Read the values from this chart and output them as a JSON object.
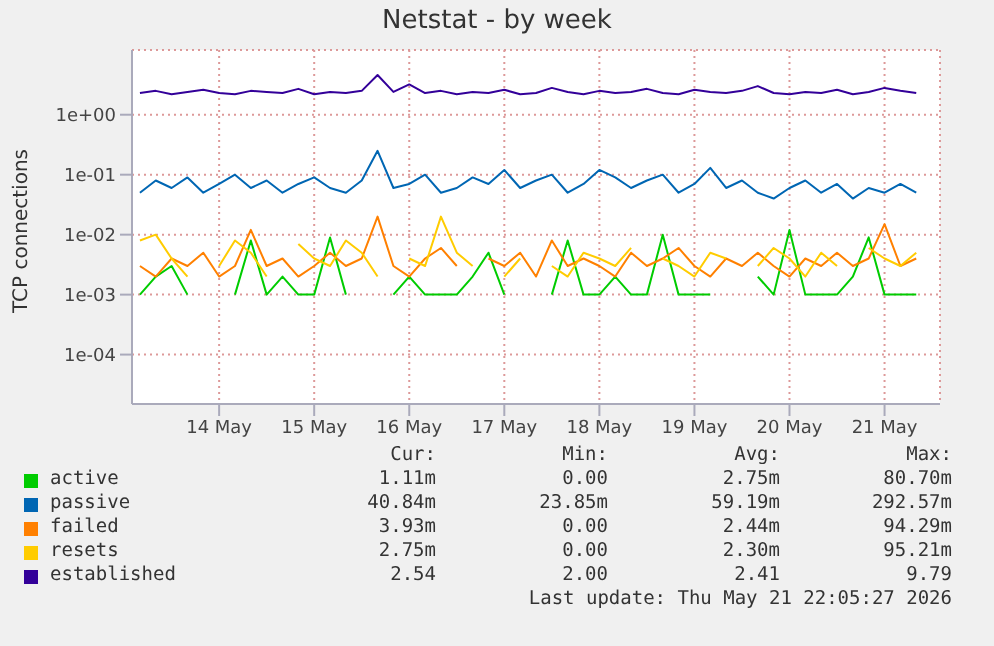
{
  "chart_data": {
    "type": "line",
    "title": "Netstat - by week",
    "ylabel": "TCP connections",
    "log": "y",
    "grid": true,
    "legend": "bottom",
    "marker": "none",
    "line_style": "solid",
    "xlim": [
      "2026-05-13T14:00",
      "2026-05-22T02:00"
    ],
    "xticks": [
      {
        "value": "2026-05-14T12:00",
        "label": "14 May"
      },
      {
        "value": "2026-05-15T12:00",
        "label": "15 May"
      },
      {
        "value": "2026-05-16T12:00",
        "label": "16 May"
      },
      {
        "value": "2026-05-17T12:00",
        "label": "17 May"
      },
      {
        "value": "2026-05-18T12:00",
        "label": "18 May"
      },
      {
        "value": "2026-05-19T12:00",
        "label": "19 May"
      },
      {
        "value": "2026-05-20T12:00",
        "label": "20 May"
      },
      {
        "value": "2026-05-21T12:00",
        "label": "21 May"
      }
    ],
    "ylim": [
      1.5e-05,
      12
    ],
    "yticks": [
      {
        "value": 0.0001,
        "label": "1e-04"
      },
      {
        "value": 0.001,
        "label": "1e-03"
      },
      {
        "value": 0.01,
        "label": "1e-02"
      },
      {
        "value": 0.1,
        "label": "1e-01"
      },
      {
        "value": 1,
        "label": "1e+00"
      }
    ],
    "x": [
      "2026-05-13T16:00",
      "2026-05-13T20:00",
      "2026-05-14T00:00",
      "2026-05-14T04:00",
      "2026-05-14T08:00",
      "2026-05-14T12:00",
      "2026-05-14T16:00",
      "2026-05-14T20:00",
      "2026-05-15T00:00",
      "2026-05-15T04:00",
      "2026-05-15T08:00",
      "2026-05-15T12:00",
      "2026-05-15T16:00",
      "2026-05-15T20:00",
      "2026-05-16T00:00",
      "2026-05-16T04:00",
      "2026-05-16T08:00",
      "2026-05-16T12:00",
      "2026-05-16T16:00",
      "2026-05-16T20:00",
      "2026-05-17T00:00",
      "2026-05-17T04:00",
      "2026-05-17T08:00",
      "2026-05-17T12:00",
      "2026-05-17T16:00",
      "2026-05-17T20:00",
      "2026-05-18T00:00",
      "2026-05-18T04:00",
      "2026-05-18T08:00",
      "2026-05-18T12:00",
      "2026-05-18T16:00",
      "2026-05-18T20:00",
      "2026-05-19T00:00",
      "2026-05-19T04:00",
      "2026-05-19T08:00",
      "2026-05-19T12:00",
      "2026-05-19T16:00",
      "2026-05-19T20:00",
      "2026-05-20T00:00",
      "2026-05-20T04:00",
      "2026-05-20T08:00",
      "2026-05-20T12:00",
      "2026-05-20T16:00",
      "2026-05-20T20:00",
      "2026-05-21T00:00",
      "2026-05-21T04:00",
      "2026-05-21T08:00",
      "2026-05-21T12:00",
      "2026-05-21T16:00",
      "2026-05-21T20:00"
    ],
    "series": [
      {
        "name": "active",
        "color": "#00cc00",
        "values": [
          0.001,
          0.002,
          0.003,
          0.001,
          null,
          null,
          0.001,
          0.008,
          0.001,
          0.002,
          0.001,
          0.001,
          0.009,
          0.001,
          null,
          null,
          0.001,
          0.002,
          0.001,
          0.001,
          0.001,
          0.002,
          0.005,
          0.001,
          null,
          null,
          0.001,
          0.008,
          0.001,
          0.001,
          0.002,
          0.001,
          0.001,
          0.01,
          0.001,
          0.001,
          0.001,
          null,
          null,
          0.002,
          0.001,
          0.012,
          0.001,
          0.001,
          0.001,
          0.002,
          0.009,
          0.001,
          0.001,
          0.001
        ]
      },
      {
        "name": "passive",
        "color": "#0066b3",
        "values": [
          0.05,
          0.08,
          0.06,
          0.09,
          0.05,
          0.07,
          0.1,
          0.06,
          0.08,
          0.05,
          0.07,
          0.09,
          0.06,
          0.05,
          0.08,
          0.25,
          0.06,
          0.07,
          0.1,
          0.05,
          0.06,
          0.09,
          0.07,
          0.12,
          0.06,
          0.08,
          0.1,
          0.05,
          0.07,
          0.12,
          0.09,
          0.06,
          0.08,
          0.1,
          0.05,
          0.07,
          0.13,
          0.06,
          0.08,
          0.05,
          0.04,
          0.06,
          0.08,
          0.05,
          0.07,
          0.04,
          0.06,
          0.05,
          0.07,
          0.05
        ]
      },
      {
        "name": "failed",
        "color": "#ff8000",
        "values": [
          0.003,
          0.002,
          0.004,
          0.003,
          0.005,
          0.002,
          0.003,
          0.012,
          0.003,
          0.004,
          0.002,
          0.003,
          0.005,
          0.003,
          0.004,
          0.02,
          0.003,
          0.002,
          0.004,
          0.006,
          0.003,
          null,
          0.004,
          0.003,
          0.005,
          0.002,
          0.008,
          0.003,
          0.004,
          0.003,
          0.002,
          0.005,
          0.003,
          0.004,
          0.006,
          0.003,
          0.002,
          0.004,
          0.003,
          0.005,
          0.003,
          0.002,
          0.004,
          0.003,
          0.005,
          0.003,
          0.004,
          0.015,
          0.003,
          0.004
        ]
      },
      {
        "name": "resets",
        "color": "#ffcc00",
        "values": [
          0.008,
          0.01,
          0.004,
          0.002,
          null,
          0.003,
          0.008,
          0.005,
          0.002,
          null,
          0.007,
          0.004,
          0.003,
          0.008,
          0.005,
          0.002,
          null,
          0.004,
          0.003,
          0.02,
          0.005,
          0.003,
          null,
          0.002,
          0.004,
          null,
          0.003,
          0.002,
          0.005,
          0.004,
          0.003,
          0.006,
          null,
          0.004,
          0.003,
          0.002,
          0.005,
          0.004,
          null,
          0.003,
          0.006,
          0.004,
          0.002,
          0.005,
          0.003,
          null,
          0.006,
          0.004,
          0.003,
          0.005
        ]
      },
      {
        "name": "established",
        "color": "#330099",
        "values": [
          2.3,
          2.5,
          2.2,
          2.4,
          2.6,
          2.3,
          2.2,
          2.5,
          2.4,
          2.3,
          2.7,
          2.2,
          2.4,
          2.3,
          2.5,
          4.6,
          2.4,
          3.2,
          2.3,
          2.5,
          2.2,
          2.4,
          2.3,
          2.6,
          2.2,
          2.3,
          2.8,
          2.4,
          2.2,
          2.5,
          2.3,
          2.4,
          2.7,
          2.3,
          2.2,
          2.6,
          2.4,
          2.3,
          2.5,
          3.0,
          2.3,
          2.2,
          2.4,
          2.3,
          2.6,
          2.2,
          2.4,
          2.8,
          2.5,
          2.3
        ]
      }
    ],
    "annotations": [
      "Cur:",
      "Min:",
      "Avg:",
      "Max:",
      "1.11m",
      "0.00",
      "2.75m",
      "80.70m",
      "40.84m",
      "23.85m",
      "59.19m",
      "292.57m",
      "3.93m",
      "0.00",
      "2.44m",
      "94.29m",
      "2.75m",
      "0.00",
      "2.30m",
      "95.21m",
      "2.54",
      "2.00",
      "2.41",
      "9.79",
      "Last update: Thu May 21 22:05:27 2026"
    ]
  }
}
